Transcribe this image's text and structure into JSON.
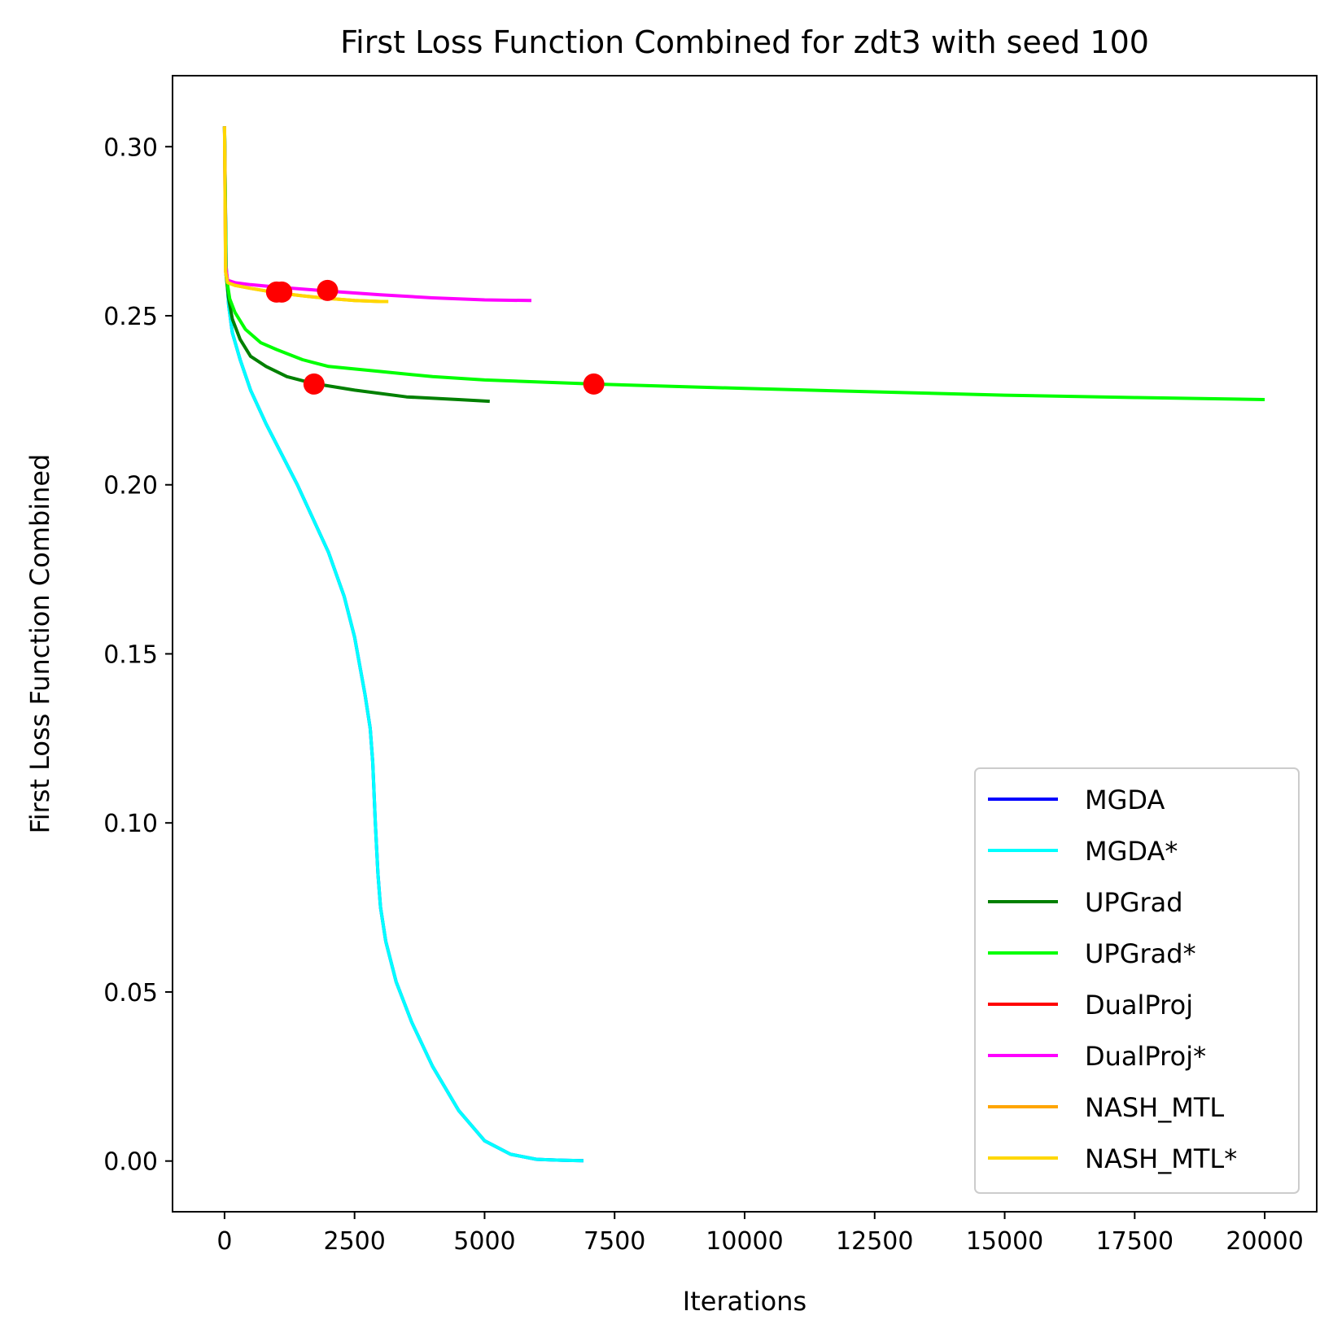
{
  "chart_data": {
    "type": "line",
    "title": "First Loss Function Combined for zdt3 with seed 100",
    "xlabel": "Iterations",
    "ylabel": "First Loss Function Combined",
    "xlim": [
      -1000,
      21000
    ],
    "ylim": [
      -0.015,
      0.321
    ],
    "xticks": [
      0,
      2500,
      5000,
      7500,
      10000,
      12500,
      15000,
      17500,
      20000
    ],
    "xtick_labels": [
      "0",
      "2500",
      "5000",
      "7500",
      "10000",
      "12500",
      "15000",
      "17500",
      "20000"
    ],
    "yticks": [
      0.0,
      0.05,
      0.1,
      0.15,
      0.2,
      0.25,
      0.3
    ],
    "ytick_labels": [
      "0.00",
      "0.05",
      "0.10",
      "0.15",
      "0.20",
      "0.25",
      "0.30"
    ],
    "grid": false,
    "legend_position": "lower-right",
    "series": [
      {
        "name": "MGDA",
        "color": "#0000ff",
        "x": [
          0,
          30,
          80,
          150,
          300,
          500,
          800,
          1100,
          1400,
          1700,
          2000,
          2300,
          2500,
          2700,
          2800,
          2850,
          2900,
          2950,
          3000,
          3100,
          3300,
          3600,
          4000,
          4500,
          5000,
          5500,
          6000,
          6500,
          6900
        ],
        "y": [
          0.306,
          0.265,
          0.253,
          0.245,
          0.237,
          0.228,
          0.218,
          0.209,
          0.2,
          0.19,
          0.18,
          0.167,
          0.155,
          0.138,
          0.128,
          0.118,
          0.1,
          0.085,
          0.075,
          0.065,
          0.053,
          0.041,
          0.028,
          0.015,
          0.006,
          0.002,
          0.0005,
          0.0002,
          0.0001
        ]
      },
      {
        "name": "MGDA*",
        "color": "#00ffff",
        "x": [
          0,
          30,
          80,
          150,
          300,
          500,
          800,
          1100,
          1400,
          1700,
          2000,
          2300,
          2500,
          2700,
          2800,
          2850,
          2900,
          2950,
          3000,
          3100,
          3300,
          3600,
          4000,
          4500,
          5000,
          5500,
          6000,
          6500,
          6900
        ],
        "y": [
          0.306,
          0.265,
          0.253,
          0.245,
          0.237,
          0.228,
          0.218,
          0.209,
          0.2,
          0.19,
          0.18,
          0.167,
          0.155,
          0.138,
          0.128,
          0.118,
          0.1,
          0.085,
          0.075,
          0.065,
          0.053,
          0.041,
          0.028,
          0.015,
          0.006,
          0.002,
          0.0005,
          0.0002,
          0.0001
        ]
      },
      {
        "name": "UPGrad",
        "color": "#008000",
        "x": [
          0,
          30,
          80,
          150,
          300,
          500,
          800,
          1200,
          1700,
          2500,
          3500,
          4500,
          5100
        ],
        "y": [
          0.306,
          0.262,
          0.255,
          0.249,
          0.243,
          0.238,
          0.235,
          0.232,
          0.23,
          0.228,
          0.226,
          0.2252,
          0.2247
        ]
      },
      {
        "name": "UPGrad*",
        "color": "#00ff00",
        "x": [
          0,
          30,
          100,
          200,
          400,
          700,
          1000,
          1500,
          2000,
          3000,
          4000,
          5000,
          7100,
          10000,
          12500,
          15000,
          17500,
          20000
        ],
        "y": [
          0.306,
          0.262,
          0.255,
          0.251,
          0.246,
          0.242,
          0.24,
          0.237,
          0.235,
          0.2335,
          0.232,
          0.231,
          0.2298,
          0.2285,
          0.2275,
          0.2265,
          0.2258,
          0.2252
        ]
      },
      {
        "name": "DualProj",
        "color": "#ff0000",
        "x": [],
        "y": []
      },
      {
        "name": "DualProj*",
        "color": "#ff00ff",
        "x": [
          0,
          20,
          60,
          200,
          500,
          1000,
          2000,
          3000,
          4000,
          5000,
          5900
        ],
        "y": [
          0.306,
          0.265,
          0.2605,
          0.2598,
          0.2592,
          0.2585,
          0.2573,
          0.2562,
          0.2553,
          0.2547,
          0.2545
        ]
      },
      {
        "name": "NASH_MTL",
        "color": "#ffa500",
        "x": [
          0,
          20,
          60,
          200,
          500,
          1000,
          1500,
          2000,
          2500,
          3000,
          3100
        ],
        "y": [
          0.306,
          0.263,
          0.2598,
          0.259,
          0.2581,
          0.2568,
          0.2559,
          0.2551,
          0.2545,
          0.2542,
          0.2542
        ]
      },
      {
        "name": "NASH_MTL*",
        "color": "#ffd700",
        "x": [
          0,
          20,
          60,
          200,
          500,
          1000,
          1500,
          2000,
          2500,
          3000,
          3150
        ],
        "y": [
          0.306,
          0.263,
          0.2598,
          0.259,
          0.2581,
          0.2568,
          0.2559,
          0.2551,
          0.2545,
          0.2542,
          0.2542
        ]
      }
    ],
    "markers": [
      {
        "x": 1000,
        "y": 0.257,
        "color": "#ff0000"
      },
      {
        "x": 1100,
        "y": 0.257,
        "color": "#ff0000"
      },
      {
        "x": 1980,
        "y": 0.2575,
        "color": "#ff0000"
      },
      {
        "x": 1720,
        "y": 0.2298,
        "color": "#ff0000"
      },
      {
        "x": 7100,
        "y": 0.2298,
        "color": "#ff0000"
      }
    ]
  }
}
